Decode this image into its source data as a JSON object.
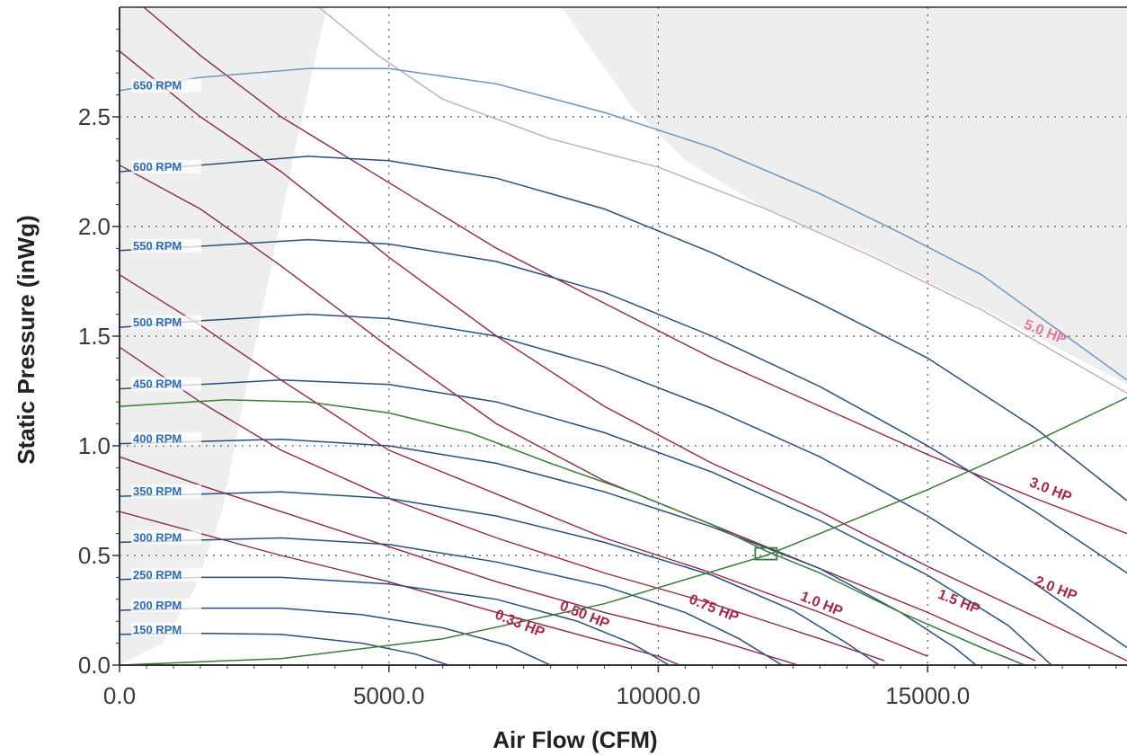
{
  "chart_data": {
    "type": "line",
    "title": "",
    "xlabel": "Air Flow (CFM)",
    "ylabel": "Static Pressure (inWg)",
    "xlim": [
      0,
      18700
    ],
    "ylim": [
      0,
      3.0
    ],
    "xticks": [
      0,
      5000,
      10000,
      15000
    ],
    "xtick_labels": [
      "0.0",
      "5000.0",
      "10000.0",
      "15000.0"
    ],
    "yticks": [
      0,
      0.5,
      1.0,
      1.5,
      2.0,
      2.5
    ],
    "ytick_labels": [
      "0.0",
      "0.5",
      "1.0",
      "1.5",
      "2.0",
      "2.5"
    ],
    "grid": true,
    "colors": {
      "rpm_curve": "#2a4f7a",
      "rpm_label": "#2f6db3",
      "hp_curve": "#8c2a4a",
      "hp_label": "#a3284a",
      "system_curve": "#3c7a3c",
      "shaded_region": "#eeeeee"
    },
    "rpm_curves": [
      {
        "label": "650 RPM",
        "points": [
          [
            0,
            2.62
          ],
          [
            1500,
            2.68
          ],
          [
            3500,
            2.72
          ],
          [
            5000,
            2.72
          ],
          [
            7000,
            2.65
          ],
          [
            9000,
            2.52
          ],
          [
            11000,
            2.36
          ],
          [
            13000,
            2.15
          ],
          [
            14500,
            1.97
          ],
          [
            16000,
            1.78
          ],
          [
            18700,
            1.3
          ]
        ]
      },
      {
        "label": "600 RPM",
        "points": [
          [
            0,
            2.25
          ],
          [
            1500,
            2.28
          ],
          [
            3500,
            2.32
          ],
          [
            5000,
            2.3
          ],
          [
            7000,
            2.22
          ],
          [
            9000,
            2.08
          ],
          [
            11000,
            1.88
          ],
          [
            13000,
            1.65
          ],
          [
            15000,
            1.4
          ],
          [
            17000,
            1.08
          ],
          [
            18700,
            0.75
          ]
        ]
      },
      {
        "label": "550 RPM",
        "points": [
          [
            0,
            1.89
          ],
          [
            1500,
            1.91
          ],
          [
            3500,
            1.94
          ],
          [
            5000,
            1.92
          ],
          [
            7000,
            1.84
          ],
          [
            9000,
            1.7
          ],
          [
            11000,
            1.5
          ],
          [
            13000,
            1.27
          ],
          [
            15000,
            1.0
          ],
          [
            17000,
            0.7
          ],
          [
            18700,
            0.42
          ]
        ]
      },
      {
        "label": "500 RPM",
        "points": [
          [
            0,
            1.54
          ],
          [
            1500,
            1.57
          ],
          [
            3500,
            1.6
          ],
          [
            5000,
            1.58
          ],
          [
            7000,
            1.5
          ],
          [
            9000,
            1.36
          ],
          [
            11000,
            1.17
          ],
          [
            13000,
            0.95
          ],
          [
            15000,
            0.68
          ],
          [
            17000,
            0.37
          ],
          [
            18700,
            0.08
          ]
        ]
      },
      {
        "label": "450 RPM",
        "points": [
          [
            0,
            1.26
          ],
          [
            1500,
            1.28
          ],
          [
            3000,
            1.3
          ],
          [
            5000,
            1.28
          ],
          [
            7000,
            1.2
          ],
          [
            9000,
            1.06
          ],
          [
            11000,
            0.88
          ],
          [
            13000,
            0.66
          ],
          [
            15000,
            0.41
          ],
          [
            16500,
            0.18
          ],
          [
            17300,
            0.0
          ]
        ]
      },
      {
        "label": "400 RPM",
        "points": [
          [
            0,
            1.01
          ],
          [
            1500,
            1.02
          ],
          [
            3000,
            1.03
          ],
          [
            5000,
            1.0
          ],
          [
            7000,
            0.92
          ],
          [
            9000,
            0.79
          ],
          [
            11000,
            0.63
          ],
          [
            13000,
            0.44
          ],
          [
            14500,
            0.24
          ],
          [
            15500,
            0.08
          ],
          [
            15900,
            0.0
          ]
        ]
      },
      {
        "label": "350 RPM",
        "points": [
          [
            0,
            0.77
          ],
          [
            1500,
            0.78
          ],
          [
            3000,
            0.79
          ],
          [
            5000,
            0.76
          ],
          [
            7000,
            0.68
          ],
          [
            9000,
            0.56
          ],
          [
            11000,
            0.41
          ],
          [
            12500,
            0.25
          ],
          [
            13500,
            0.1
          ],
          [
            14100,
            0.0
          ]
        ]
      },
      {
        "label": "300 RPM",
        "points": [
          [
            0,
            0.56
          ],
          [
            1500,
            0.57
          ],
          [
            3000,
            0.58
          ],
          [
            5000,
            0.55
          ],
          [
            7000,
            0.47
          ],
          [
            9000,
            0.36
          ],
          [
            10500,
            0.24
          ],
          [
            11500,
            0.12
          ],
          [
            12300,
            0.0
          ]
        ]
      },
      {
        "label": "250 RPM",
        "points": [
          [
            0,
            0.39
          ],
          [
            1500,
            0.4
          ],
          [
            3000,
            0.4
          ],
          [
            5000,
            0.37
          ],
          [
            7000,
            0.3
          ],
          [
            8500,
            0.2
          ],
          [
            9500,
            0.1
          ],
          [
            10200,
            0.0
          ]
        ]
      },
      {
        "label": "200 RPM",
        "points": [
          [
            0,
            0.25
          ],
          [
            1500,
            0.26
          ],
          [
            3000,
            0.26
          ],
          [
            4500,
            0.23
          ],
          [
            6000,
            0.17
          ],
          [
            7200,
            0.09
          ],
          [
            8000,
            0.0
          ]
        ]
      },
      {
        "label": "150 RPM",
        "points": [
          [
            0,
            0.14
          ],
          [
            1500,
            0.145
          ],
          [
            3000,
            0.14
          ],
          [
            4500,
            0.1
          ],
          [
            5500,
            0.05
          ],
          [
            6100,
            0.0
          ]
        ]
      }
    ],
    "hp_curves": [
      {
        "label": "5.0 HP",
        "style": "light",
        "points": [
          [
            3700,
            3.0
          ],
          [
            4800,
            2.78
          ],
          [
            6000,
            2.58
          ],
          [
            8000,
            2.4
          ],
          [
            10000,
            2.27
          ],
          [
            12000,
            2.08
          ],
          [
            14000,
            1.86
          ],
          [
            16000,
            1.62
          ],
          [
            18700,
            1.24
          ]
        ]
      },
      {
        "label": "3.0 HP",
        "points": [
          [
            450,
            3.0
          ],
          [
            1500,
            2.78
          ],
          [
            3000,
            2.5
          ],
          [
            5000,
            2.2
          ],
          [
            7000,
            1.9
          ],
          [
            9000,
            1.65
          ],
          [
            11000,
            1.4
          ],
          [
            13000,
            1.18
          ],
          [
            15000,
            0.96
          ],
          [
            17000,
            0.76
          ],
          [
            18700,
            0.6
          ]
        ]
      },
      {
        "label": "2.0 HP",
        "points": [
          [
            0,
            2.8
          ],
          [
            1500,
            2.5
          ],
          [
            3000,
            2.25
          ],
          [
            5000,
            1.86
          ],
          [
            7000,
            1.5
          ],
          [
            9000,
            1.18
          ],
          [
            11000,
            0.92
          ],
          [
            13000,
            0.7
          ],
          [
            15000,
            0.45
          ],
          [
            17000,
            0.22
          ],
          [
            18700,
            0.02
          ]
        ]
      },
      {
        "label": "1.5 HP",
        "points": [
          [
            0,
            2.28
          ],
          [
            1500,
            2.08
          ],
          [
            3000,
            1.82
          ],
          [
            5000,
            1.45
          ],
          [
            7000,
            1.1
          ],
          [
            9000,
            0.84
          ],
          [
            11000,
            0.64
          ],
          [
            13000,
            0.44
          ],
          [
            15000,
            0.24
          ],
          [
            17000,
            0.02
          ]
        ]
      },
      {
        "label": "1.0 HP",
        "points": [
          [
            0,
            1.78
          ],
          [
            1500,
            1.55
          ],
          [
            3000,
            1.3
          ],
          [
            5000,
            0.98
          ],
          [
            7000,
            0.78
          ],
          [
            9000,
            0.58
          ],
          [
            11000,
            0.42
          ],
          [
            13000,
            0.24
          ],
          [
            15000,
            0.04
          ]
        ]
      },
      {
        "label": "0.75 HP",
        "points": [
          [
            0,
            1.45
          ],
          [
            1500,
            1.2
          ],
          [
            3000,
            0.98
          ],
          [
            5000,
            0.76
          ],
          [
            7000,
            0.58
          ],
          [
            9000,
            0.42
          ],
          [
            11000,
            0.28
          ],
          [
            13000,
            0.12
          ],
          [
            14200,
            0.02
          ]
        ]
      },
      {
        "label": "0.50 HP",
        "points": [
          [
            0,
            0.95
          ],
          [
            1500,
            0.82
          ],
          [
            3000,
            0.7
          ],
          [
            5000,
            0.54
          ],
          [
            7000,
            0.38
          ],
          [
            9000,
            0.24
          ],
          [
            11000,
            0.12
          ],
          [
            12600,
            0.0
          ]
        ]
      },
      {
        "label": "0.33 HP",
        "points": [
          [
            0,
            0.7
          ],
          [
            1500,
            0.6
          ],
          [
            3000,
            0.5
          ],
          [
            5000,
            0.38
          ],
          [
            7000,
            0.24
          ],
          [
            8500,
            0.14
          ],
          [
            10000,
            0.04
          ],
          [
            10400,
            0.0
          ]
        ]
      }
    ],
    "system_curves": [
      {
        "points": [
          [
            0,
            1.18
          ],
          [
            2000,
            1.21
          ],
          [
            3500,
            1.2
          ],
          [
            5000,
            1.15
          ],
          [
            6500,
            1.06
          ],
          [
            8000,
            0.92
          ],
          [
            9500,
            0.79
          ],
          [
            11000,
            0.64
          ],
          [
            12000,
            0.52
          ],
          [
            13000,
            0.42
          ],
          [
            14500,
            0.24
          ],
          [
            16000,
            0.08
          ],
          [
            16800,
            0.0
          ]
        ]
      },
      {
        "points": [
          [
            0,
            0.0
          ],
          [
            3000,
            0.03
          ],
          [
            6000,
            0.12
          ],
          [
            9000,
            0.28
          ],
          [
            12000,
            0.5
          ],
          [
            15000,
            0.8
          ],
          [
            17000,
            1.02
          ],
          [
            18700,
            1.22
          ]
        ]
      }
    ],
    "operating_point": {
      "x": 12000,
      "y": 0.51
    },
    "shaded_regions": [
      {
        "points": [
          [
            0,
            3.0
          ],
          [
            3850,
            3.0
          ],
          [
            3300,
            2.4
          ],
          [
            2800,
            1.8
          ],
          [
            2300,
            1.2
          ],
          [
            1900,
            0.7
          ],
          [
            1400,
            0.35
          ],
          [
            800,
            0.1
          ],
          [
            0,
            0.0
          ]
        ]
      },
      {
        "points": [
          [
            8200,
            3.0
          ],
          [
            18700,
            3.0
          ],
          [
            18700,
            1.28
          ],
          [
            16000,
            1.63
          ],
          [
            14000,
            1.87
          ],
          [
            12000,
            2.08
          ],
          [
            10500,
            2.3
          ],
          [
            9500,
            2.55
          ]
        ]
      }
    ]
  }
}
